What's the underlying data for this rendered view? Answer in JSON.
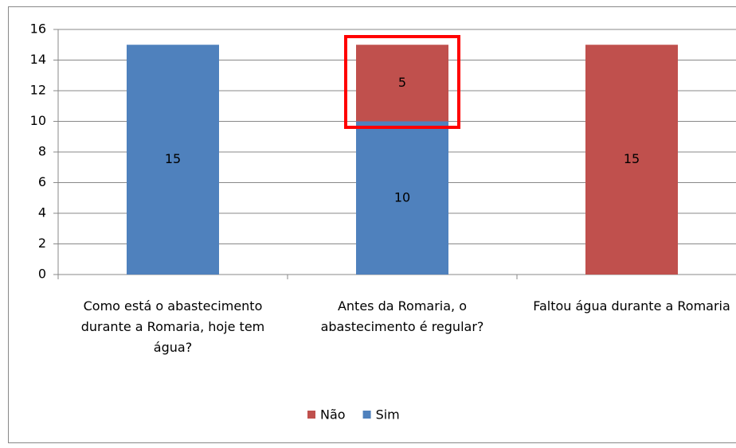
{
  "chart_data": {
    "type": "bar",
    "stacked": true,
    "categories": [
      "Como está o abastecimento durante a Romaria, hoje tem água?",
      "Antes da Romaria, o abastecimento é regular?",
      "Faltou água durante a Romaria"
    ],
    "series": [
      {
        "name": "Sim",
        "color": "#4f81bd",
        "values": [
          15,
          10,
          0
        ]
      },
      {
        "name": "Não",
        "color": "#c0504d",
        "values": [
          0,
          5,
          15
        ]
      }
    ],
    "ylim": [
      0,
      16
    ],
    "yticks": [
      0,
      2,
      4,
      6,
      8,
      10,
      12,
      14,
      16
    ],
    "grid": true,
    "legend": "bottom"
  }
}
